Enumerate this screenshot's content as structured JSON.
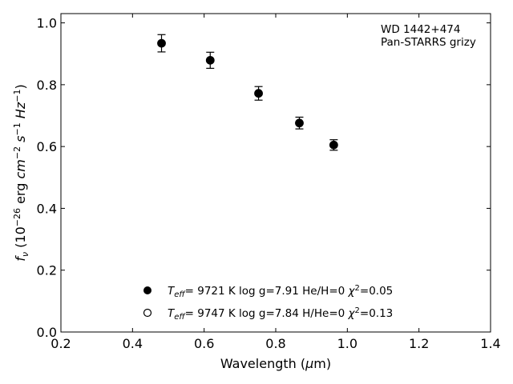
{
  "chart_data": {
    "type": "scatter",
    "xlabel_prefix": "Wavelength (",
    "xlabel_unit": "μ",
    "xlabel_suffix": "m)",
    "ylabel": "f_ν (10^-26 erg cm^-2 s^-1 Hz^-1)",
    "xlim": [
      0.2,
      1.4
    ],
    "ylim": [
      0.0,
      1.03
    ],
    "xticks": [
      0.2,
      0.4,
      0.6,
      0.8,
      1.0,
      1.2,
      1.4
    ],
    "yticks": [
      0.0,
      0.2,
      0.4,
      0.6,
      0.8,
      1.0
    ],
    "xtick_labels": [
      "0.2",
      "0.4",
      "0.6",
      "0.8",
      "1.0",
      "1.2",
      "1.4"
    ],
    "ytick_labels": [
      "0.0",
      "0.2",
      "0.4",
      "0.6",
      "0.8",
      "1.0"
    ],
    "grid": false,
    "annotation": [
      "WD 1442+474",
      "Pan-STARRS grizy"
    ],
    "series": [
      {
        "marker": "filled-circle",
        "points": [
          {
            "x": 0.481,
            "y": 0.934,
            "err": 0.028
          },
          {
            "x": 0.617,
            "y": 0.879,
            "err": 0.026
          },
          {
            "x": 0.752,
            "y": 0.772,
            "err": 0.022
          },
          {
            "x": 0.866,
            "y": 0.676,
            "err": 0.019
          },
          {
            "x": 0.962,
            "y": 0.605,
            "err": 0.017
          }
        ]
      },
      {
        "marker": "open-circle",
        "points": []
      }
    ],
    "legend": [
      {
        "marker": "filled-circle",
        "teff": "9721 K",
        "logg": "log g=7.91",
        "comp": "He/H=0",
        "chi2": "=0.05"
      },
      {
        "marker": "open-circle",
        "teff": "9747 K",
        "logg": "log g=7.84",
        "comp": "H/He=0",
        "chi2": "=0.13"
      }
    ]
  }
}
